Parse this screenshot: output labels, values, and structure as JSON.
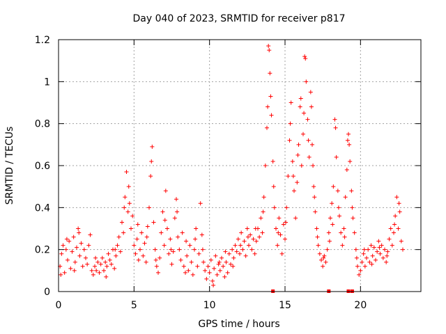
{
  "chart_data": {
    "type": "scatter",
    "title": "Day 040 of 2023, SRMTID for receiver p817",
    "xlabel": "GPS time / hours",
    "ylabel": "SRMTID / TECUs",
    "xlim": [
      0,
      24
    ],
    "ylim": [
      0,
      1.2
    ],
    "grid": true,
    "marker": "+",
    "point_color": "#ff0000",
    "x_ticks": [
      0,
      5,
      10,
      15,
      20
    ],
    "x_tick_labels": [
      "0",
      "5",
      "10",
      "15",
      "20"
    ],
    "y_ticks": [
      0,
      0.2,
      0.4,
      0.6,
      0.8,
      1.0,
      1.2
    ],
    "y_tick_labels": [
      "0",
      "0.2",
      "0.4",
      "0.6",
      "0.8",
      "1",
      "1.2"
    ],
    "gap_markers_x": [
      14.2,
      17.9,
      19.2,
      19.45
    ],
    "series": [
      {
        "name": "SRMTID",
        "points": [
          [
            0.1,
            0.12
          ],
          [
            0.2,
            0.18
          ],
          [
            0.3,
            0.22
          ],
          [
            0.4,
            0.09
          ],
          [
            0.5,
            0.2
          ],
          [
            0.6,
            0.15
          ],
          [
            0.7,
            0.24
          ],
          [
            0.8,
            0.11
          ],
          [
            0.9,
            0.19
          ],
          [
            1.0,
            0.26
          ],
          [
            1.1,
            0.14
          ],
          [
            1.2,
            0.21
          ],
          [
            1.3,
            0.3
          ],
          [
            1.4,
            0.17
          ],
          [
            1.5,
            0.23
          ],
          [
            1.6,
            0.12
          ],
          [
            1.7,
            0.2
          ],
          [
            1.8,
            0.16
          ],
          [
            1.9,
            0.13
          ],
          [
            2.0,
            0.22
          ],
          [
            2.1,
            0.27
          ],
          [
            2.2,
            0.1
          ],
          [
            2.3,
            0.08
          ],
          [
            2.4,
            0.12
          ],
          [
            2.5,
            0.1
          ],
          [
            2.6,
            0.14
          ],
          [
            2.7,
            0.09
          ],
          [
            2.8,
            0.13
          ],
          [
            2.9,
            0.16
          ],
          [
            3.0,
            0.1
          ],
          [
            3.1,
            0.14
          ],
          [
            3.2,
            0.12
          ],
          [
            3.3,
            0.18
          ],
          [
            3.4,
            0.15
          ],
          [
            3.5,
            0.13
          ],
          [
            3.6,
            0.2
          ],
          [
            3.7,
            0.11
          ],
          [
            3.8,
            0.17
          ],
          [
            3.9,
            0.22
          ],
          [
            4.0,
            0.26
          ],
          [
            4.1,
            0.19
          ],
          [
            4.2,
            0.33
          ],
          [
            4.3,
            0.28
          ],
          [
            4.4,
            0.45
          ],
          [
            4.5,
            0.57
          ],
          [
            4.6,
            0.38
          ],
          [
            4.7,
            0.42
          ],
          [
            4.8,
            0.3
          ],
          [
            4.9,
            0.36
          ],
          [
            5.0,
            0.22
          ],
          [
            5.1,
            0.18
          ],
          [
            5.2,
            0.25
          ],
          [
            5.3,
            0.15
          ],
          [
            5.4,
            0.2
          ],
          [
            5.5,
            0.28
          ],
          [
            5.6,
            0.17
          ],
          [
            5.7,
            0.23
          ],
          [
            5.8,
            0.14
          ],
          [
            5.9,
            0.31
          ],
          [
            6.0,
            0.4
          ],
          [
            6.1,
            0.55
          ],
          [
            6.2,
            0.69
          ],
          [
            6.3,
            0.33
          ],
          [
            6.4,
            0.2
          ],
          [
            6.5,
            0.12
          ],
          [
            6.6,
            0.09
          ],
          [
            6.7,
            0.16
          ],
          [
            6.8,
            0.28
          ],
          [
            6.9,
            0.38
          ],
          [
            7.0,
            0.22
          ],
          [
            7.1,
            0.48
          ],
          [
            7.2,
            0.3
          ],
          [
            7.3,
            0.18
          ],
          [
            7.4,
            0.25
          ],
          [
            7.5,
            0.13
          ],
          [
            7.6,
            0.19
          ],
          [
            7.7,
            0.35
          ],
          [
            7.8,
            0.44
          ],
          [
            7.9,
            0.26
          ],
          [
            8.0,
            0.2
          ],
          [
            8.1,
            0.15
          ],
          [
            8.2,
            0.28
          ],
          [
            8.3,
            0.12
          ],
          [
            8.4,
            0.09
          ],
          [
            8.5,
            0.17
          ],
          [
            8.6,
            0.1
          ],
          [
            8.7,
            0.22
          ],
          [
            8.8,
            0.14
          ],
          [
            8.9,
            0.08
          ],
          [
            9.0,
            0.2
          ],
          [
            9.1,
            0.3
          ],
          [
            9.2,
            0.12
          ],
          [
            9.3,
            0.18
          ],
          [
            9.4,
            0.42
          ],
          [
            9.5,
            0.27
          ],
          [
            9.6,
            0.14
          ],
          [
            9.7,
            0.1
          ],
          [
            9.8,
            0.06
          ],
          [
            9.9,
            0.12
          ],
          [
            10.0,
            0.09
          ],
          [
            10.1,
            0.15
          ],
          [
            10.2,
            0.05
          ],
          [
            10.3,
            0.11
          ],
          [
            10.4,
            0.17
          ],
          [
            10.5,
            0.08
          ],
          [
            10.6,
            0.13
          ],
          [
            10.7,
            0.1
          ],
          [
            10.8,
            0.16
          ],
          [
            10.9,
            0.12
          ],
          [
            11.0,
            0.07
          ],
          [
            11.1,
            0.14
          ],
          [
            11.2,
            0.09
          ],
          [
            11.3,
            0.18
          ],
          [
            11.4,
            0.13
          ],
          [
            11.5,
            0.2
          ],
          [
            11.6,
            0.16
          ],
          [
            11.7,
            0.22
          ],
          [
            11.8,
            0.19
          ],
          [
            11.9,
            0.25
          ],
          [
            12.0,
            0.18
          ],
          [
            12.1,
            0.28
          ],
          [
            12.2,
            0.2
          ],
          [
            12.3,
            0.24
          ],
          [
            12.4,
            0.17
          ],
          [
            12.5,
            0.3
          ],
          [
            12.6,
            0.22
          ],
          [
            12.7,
            0.27
          ],
          [
            12.8,
            0.2
          ],
          [
            12.9,
            0.25
          ],
          [
            13.0,
            0.18
          ],
          [
            13.1,
            0.24
          ],
          [
            13.2,
            0.3
          ],
          [
            13.3,
            0.26
          ],
          [
            13.4,
            0.35
          ],
          [
            13.5,
            0.28
          ],
          [
            13.6,
            0.45
          ],
          [
            13.7,
            0.6
          ],
          [
            13.8,
            0.78
          ],
          [
            13.9,
            1.17
          ],
          [
            14.0,
            1.04
          ],
          [
            14.05,
            0.93
          ],
          [
            14.1,
            0.84
          ],
          [
            14.2,
            0.62
          ],
          [
            14.3,
            0.4
          ],
          [
            14.4,
            0.3
          ],
          [
            14.5,
            0.22
          ],
          [
            14.6,
            0.35
          ],
          [
            14.7,
            0.27
          ],
          [
            14.8,
            0.18
          ],
          [
            14.9,
            0.32
          ],
          [
            15.0,
            0.25
          ],
          [
            15.1,
            0.4
          ],
          [
            15.2,
            0.55
          ],
          [
            15.3,
            0.72
          ],
          [
            15.4,
            0.9
          ],
          [
            15.5,
            0.62
          ],
          [
            15.6,
            0.48
          ],
          [
            15.7,
            0.35
          ],
          [
            15.8,
            0.52
          ],
          [
            15.9,
            0.7
          ],
          [
            16.0,
            0.88
          ],
          [
            16.1,
            0.6
          ],
          [
            16.2,
            0.75
          ],
          [
            16.3,
            1.12
          ],
          [
            16.4,
            1.0
          ],
          [
            16.5,
            0.82
          ],
          [
            16.6,
            0.64
          ],
          [
            16.7,
            0.95
          ],
          [
            16.8,
            0.7
          ],
          [
            16.9,
            0.5
          ],
          [
            17.0,
            0.38
          ],
          [
            17.1,
            0.3
          ],
          [
            17.2,
            0.22
          ],
          [
            17.3,
            0.18
          ],
          [
            17.4,
            0.15
          ],
          [
            17.5,
            0.12
          ],
          [
            17.6,
            0.17
          ],
          [
            17.7,
            0.14
          ],
          [
            17.8,
            0.2
          ],
          [
            17.9,
            0.28
          ],
          [
            18.0,
            0.35
          ],
          [
            18.1,
            0.42
          ],
          [
            18.2,
            0.5
          ],
          [
            18.3,
            0.82
          ],
          [
            18.4,
            0.64
          ],
          [
            18.5,
            0.48
          ],
          [
            18.6,
            0.36
          ],
          [
            18.7,
            0.28
          ],
          [
            18.8,
            0.22
          ],
          [
            18.9,
            0.3
          ],
          [
            19.0,
            0.45
          ],
          [
            19.1,
            0.58
          ],
          [
            19.2,
            0.75
          ],
          [
            19.3,
            0.62
          ],
          [
            19.4,
            0.48
          ],
          [
            19.5,
            0.35
          ],
          [
            19.6,
            0.28
          ],
          [
            19.7,
            0.2
          ],
          [
            19.8,
            0.12
          ],
          [
            19.9,
            0.08
          ],
          [
            20.0,
            0.1
          ],
          [
            20.1,
            0.14
          ],
          [
            20.2,
            0.18
          ],
          [
            20.3,
            0.12
          ],
          [
            20.4,
            0.16
          ],
          [
            20.5,
            0.2
          ],
          [
            20.6,
            0.14
          ],
          [
            20.7,
            0.22
          ],
          [
            20.8,
            0.17
          ],
          [
            20.9,
            0.21
          ],
          [
            21.0,
            0.15
          ],
          [
            21.1,
            0.19
          ],
          [
            21.2,
            0.24
          ],
          [
            21.3,
            0.18
          ],
          [
            21.4,
            0.22
          ],
          [
            21.5,
            0.16
          ],
          [
            21.6,
            0.2
          ],
          [
            21.7,
            0.14
          ],
          [
            21.8,
            0.19
          ],
          [
            21.9,
            0.25
          ],
          [
            22.0,
            0.3
          ],
          [
            22.1,
            0.22
          ],
          [
            22.2,
            0.28
          ],
          [
            22.3,
            0.36
          ],
          [
            22.4,
            0.45
          ],
          [
            22.5,
            0.3
          ],
          [
            22.6,
            0.38
          ],
          [
            22.7,
            0.24
          ],
          [
            22.8,
            0.2
          ],
          [
            0.15,
            0.08
          ],
          [
            0.55,
            0.25
          ],
          [
            1.05,
            0.1
          ],
          [
            1.35,
            0.28
          ],
          [
            2.45,
            0.16
          ],
          [
            3.15,
            0.07
          ],
          [
            3.75,
            0.2
          ],
          [
            4.35,
            0.4
          ],
          [
            4.65,
            0.5
          ],
          [
            5.25,
            0.32
          ],
          [
            5.85,
            0.26
          ],
          [
            6.15,
            0.62
          ],
          [
            6.45,
            0.15
          ],
          [
            7.05,
            0.34
          ],
          [
            7.45,
            0.2
          ],
          [
            7.85,
            0.38
          ],
          [
            8.45,
            0.24
          ],
          [
            9.05,
            0.25
          ],
          [
            9.55,
            0.2
          ],
          [
            10.25,
            0.03
          ],
          [
            10.65,
            0.14
          ],
          [
            11.05,
            0.19
          ],
          [
            11.55,
            0.12
          ],
          [
            12.05,
            0.22
          ],
          [
            12.55,
            0.26
          ],
          [
            13.05,
            0.3
          ],
          [
            13.55,
            0.38
          ],
          [
            13.85,
            0.88
          ],
          [
            13.95,
            1.15
          ],
          [
            14.25,
            0.5
          ],
          [
            14.55,
            0.28
          ],
          [
            15.05,
            0.33
          ],
          [
            15.35,
            0.8
          ],
          [
            15.55,
            0.55
          ],
          [
            15.85,
            0.65
          ],
          [
            16.05,
            0.92
          ],
          [
            16.25,
            0.85
          ],
          [
            16.35,
            1.11
          ],
          [
            16.55,
            0.72
          ],
          [
            16.75,
            0.88
          ],
          [
            16.85,
            0.6
          ],
          [
            16.95,
            0.45
          ],
          [
            17.15,
            0.26
          ],
          [
            17.55,
            0.16
          ],
          [
            17.95,
            0.24
          ],
          [
            18.15,
            0.32
          ],
          [
            18.35,
            0.78
          ],
          [
            18.55,
            0.4
          ],
          [
            18.95,
            0.26
          ],
          [
            19.15,
            0.72
          ],
          [
            19.25,
            0.7
          ],
          [
            19.45,
            0.4
          ],
          [
            19.75,
            0.16
          ],
          [
            20.25,
            0.2
          ],
          [
            20.75,
            0.13
          ],
          [
            21.25,
            0.21
          ],
          [
            21.75,
            0.17
          ],
          [
            22.25,
            0.32
          ],
          [
            22.55,
            0.42
          ]
        ]
      }
    ]
  }
}
